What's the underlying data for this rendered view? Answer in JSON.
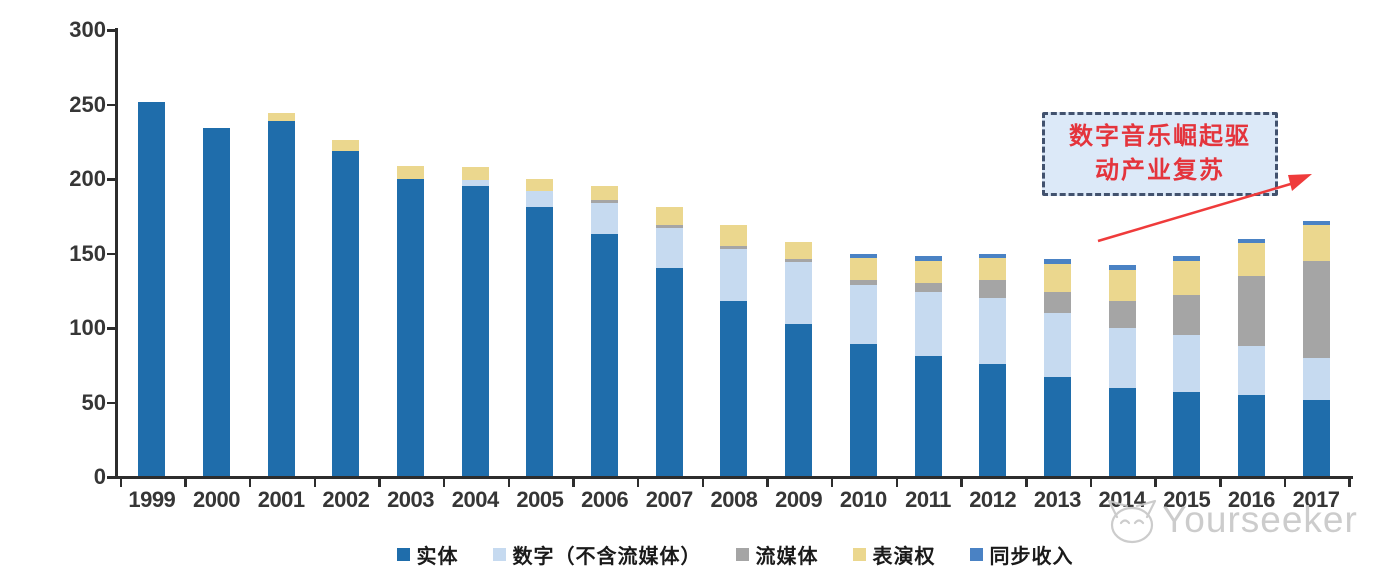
{
  "chart_data": {
    "type": "bar",
    "stacked": true,
    "title": "",
    "xlabel": "",
    "ylabel": "",
    "categories": [
      "1999",
      "2000",
      "2001",
      "2002",
      "2003",
      "2004",
      "2005",
      "2006",
      "2007",
      "2008",
      "2009",
      "2010",
      "2011",
      "2012",
      "2013",
      "2014",
      "2015",
      "2016",
      "2017"
    ],
    "series": [
      {
        "name": "实体",
        "color": "#1f6dab",
        "values": [
          252,
          234,
          239,
          219,
          200,
          195,
          181,
          163,
          140,
          118,
          103,
          89,
          81,
          76,
          67,
          60,
          57,
          55,
          52
        ]
      },
      {
        "name": "数字（不含流媒体）",
        "color": "#c6daf0",
        "values": [
          0,
          0,
          0,
          0,
          0,
          4,
          11,
          21,
          27,
          35,
          41,
          40,
          43,
          44,
          43,
          40,
          38,
          33,
          28
        ]
      },
      {
        "name": "流媒体",
        "color": "#a5a5a5",
        "values": [
          0,
          0,
          0,
          0,
          0,
          0,
          0,
          2,
          2,
          2,
          2,
          3,
          6,
          12,
          14,
          18,
          27,
          47,
          65
        ]
      },
      {
        "name": "表演权",
        "color": "#ebd78e",
        "values": [
          0,
          0,
          5,
          7,
          9,
          9,
          8,
          9,
          12,
          14,
          12,
          15,
          15,
          15,
          19,
          21,
          23,
          22,
          24
        ]
      },
      {
        "name": "同步收入",
        "color": "#4a82c4",
        "values": [
          0,
          0,
          0,
          0,
          0,
          0,
          0,
          0,
          0,
          0,
          0,
          3,
          3,
          3,
          3,
          3,
          3,
          3,
          3
        ]
      }
    ],
    "ylim": [
      0,
      300
    ],
    "yticks": [
      0,
      50,
      100,
      150,
      200,
      250,
      300
    ],
    "grid": false,
    "legend_position": "bottom"
  },
  "annotation": {
    "line1": "数字音乐崛起驱",
    "line2": "动产业复苏",
    "text_color": "#e4343c",
    "box_fill": "#dce9f8",
    "box_border": "#42526e",
    "arrow_color": "#ef3b3b"
  },
  "watermark": {
    "text": "Yourseeker",
    "logo": "cat-logo",
    "color": "#c7c7c7"
  },
  "axis": {
    "line_color": "#2d2d2d",
    "label_color": "#363636"
  }
}
